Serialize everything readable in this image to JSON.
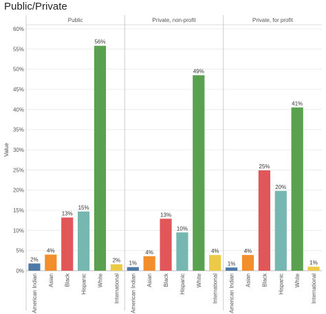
{
  "page": {
    "title": "Public/Private"
  },
  "chart_data": {
    "type": "bar",
    "title": "Public/Private",
    "ylabel": "Value",
    "ylim": [
      0,
      60
    ],
    "y_ticks": [
      "0%",
      "5%",
      "10%",
      "15%",
      "20%",
      "25%",
      "30%",
      "35%",
      "40%",
      "45%",
      "50%",
      "55%",
      "60%"
    ],
    "categories": [
      "American Indian",
      "Asian",
      "Black",
      "Hispanic",
      "White",
      "International"
    ],
    "colors": [
      "#4e79a7",
      "#f28e2b",
      "#e15759",
      "#76b7b2",
      "#59a14f",
      "#edc948"
    ],
    "panels": [
      {
        "name": "Public",
        "values": [
          1.8,
          4.0,
          13.2,
          14.7,
          55.8,
          1.6
        ],
        "labels": [
          "2%",
          "4%",
          "13%",
          "15%",
          "56%",
          "2%"
        ]
      },
      {
        "name": "Private, non-profit",
        "values": [
          0.9,
          3.6,
          12.9,
          9.5,
          48.5,
          3.9
        ],
        "labels": [
          "1%",
          "4%",
          "13%",
          "10%",
          "49%",
          "4%"
        ]
      },
      {
        "name": "Private, for profit",
        "values": [
          0.8,
          3.9,
          24.9,
          19.8,
          40.5,
          1.0
        ],
        "labels": [
          "1%",
          "4%",
          "25%",
          "20%",
          "41%",
          "1%"
        ]
      }
    ],
    "grid": true,
    "legend": "none"
  }
}
